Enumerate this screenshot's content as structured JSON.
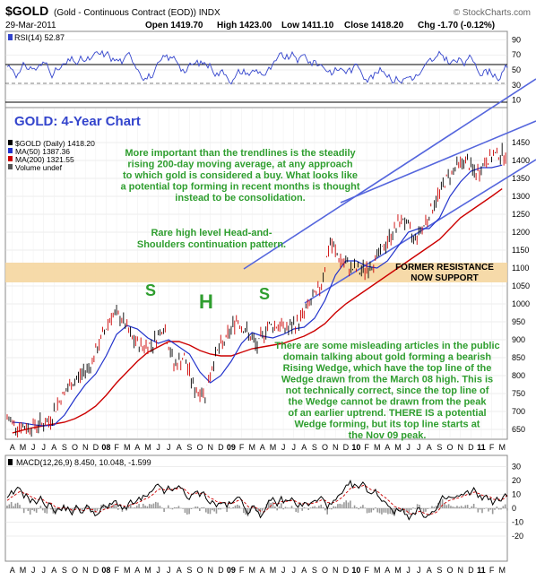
{
  "header": {
    "symbol": "$GOLD",
    "description": "(Gold - Continuous Contract (EOD)) INDX",
    "watermark": "© StockCharts.com",
    "date": "29-Mar-2011",
    "open": "Open 1419.70",
    "high": "High 1423.00",
    "low": "Low 1411.10",
    "close": "Close 1418.20",
    "change": "Chg -1.70 (-0.12%)"
  },
  "rsi_panel": {
    "label": "RSI(14) 52.87",
    "ticks": [
      "90",
      "70",
      "50",
      "30",
      "10"
    ]
  },
  "price_panel": {
    "chart_title": "GOLD: 4-Year Chart",
    "legend": [
      {
        "text": "$GOLD (Daily) 1418.20",
        "color": "#000000"
      },
      {
        "text": "MA(50) 1387.36",
        "color": "#2233cc"
      },
      {
        "text": "MA(200) 1321.55",
        "color": "#cc0000"
      },
      {
        "text": "Volume undef",
        "color": "#555555"
      }
    ],
    "yticks": [
      "1450",
      "1400",
      "1350",
      "1300",
      "1250",
      "1200",
      "1150",
      "1100",
      "1050",
      "1000",
      "950",
      "900",
      "850",
      "800",
      "750",
      "700",
      "650"
    ],
    "resistance_label_1": "FORMER RESISTANCE",
    "resistance_label_2": "NOW SUPPORT",
    "hs_letters": [
      "S",
      "H",
      "S"
    ],
    "annotation_top": [
      "More important than the trendlines is the steadily",
      "rising 200-day moving average, at any approach",
      "to which gold is considered a buy. What looks like",
      "a potential top forming in recent months is thought",
      "instead to be consolidation."
    ],
    "annotation_hs": [
      "Rare high level Head-and-",
      "Shoulders continuation pattern."
    ],
    "annotation_wedge": [
      "There are some misleading articles in the public",
      "domain talking about gold forming a bearish",
      "Rising Wedge, which have the top line of the",
      "Wedge drawn from the March 08 high. This is",
      "not technically correct, since the top line of",
      "the Wedge cannot be drawn from the peak",
      "of an earlier uptrend. THERE IS a potential",
      "Wedge forming, but its top line starts at",
      "the Nov 09 peak."
    ]
  },
  "xaxis": {
    "labels": [
      "A",
      "M",
      "J",
      "J",
      "A",
      "S",
      "O",
      "N",
      "D",
      "08",
      "F",
      "M",
      "A",
      "M",
      "J",
      "J",
      "A",
      "S",
      "O",
      "N",
      "D",
      "09",
      "F",
      "M",
      "A",
      "M",
      "J",
      "J",
      "A",
      "S",
      "O",
      "N",
      "D",
      "10",
      "F",
      "M",
      "A",
      "M",
      "J",
      "J",
      "A",
      "S",
      "O",
      "N",
      "D",
      "11",
      "F",
      "M"
    ]
  },
  "macd_panel": {
    "label": "MACD(12,26,9) 8.450, 10.048, -1.599",
    "ticks": [
      "30",
      "20",
      "10",
      "0",
      "-10",
      "-20"
    ]
  },
  "colors": {
    "price": "#000000",
    "ma50": "#2233cc",
    "ma200": "#cc0000",
    "rsi": "#3344cc",
    "annotation": "#2f9e2f",
    "title": "#3344cc",
    "band": "#f5d6a0",
    "trendline": "#5566dd"
  },
  "chart_data": {
    "type": "line",
    "title": "GOLD: 4-Year Chart",
    "x": [
      "2007-04",
      "2007-05",
      "2007-06",
      "2007-07",
      "2007-08",
      "2007-09",
      "2007-10",
      "2007-11",
      "2007-12",
      "2008-01",
      "2008-02",
      "2008-03",
      "2008-04",
      "2008-05",
      "2008-06",
      "2008-07",
      "2008-08",
      "2008-09",
      "2008-10",
      "2008-11",
      "2008-12",
      "2009-01",
      "2009-02",
      "2009-03",
      "2009-04",
      "2009-05",
      "2009-06",
      "2009-07",
      "2009-08",
      "2009-09",
      "2009-10",
      "2009-11",
      "2009-12",
      "2010-01",
      "2010-02",
      "2010-03",
      "2010-04",
      "2010-05",
      "2010-06",
      "2010-07",
      "2010-08",
      "2010-09",
      "2010-10",
      "2010-11",
      "2010-12",
      "2011-01",
      "2011-02",
      "2011-03"
    ],
    "series": [
      {
        "name": "$GOLD (Daily)",
        "values": [
          680,
          660,
          655,
          665,
          670,
          730,
          770,
          800,
          830,
          900,
          970,
          960,
          900,
          880,
          890,
          940,
          830,
          850,
          760,
          750,
          860,
          900,
          960,
          920,
          880,
          940,
          940,
          930,
          950,
          1000,
          1040,
          1170,
          1120,
          1100,
          1090,
          1110,
          1150,
          1200,
          1240,
          1180,
          1220,
          1280,
          1340,
          1380,
          1400,
          1360,
          1400,
          1418
        ]
      },
      {
        "name": "MA(50)",
        "values": [
          670,
          668,
          663,
          660,
          662,
          690,
          735,
          775,
          805,
          855,
          915,
          940,
          930,
          905,
          890,
          900,
          880,
          860,
          810,
          780,
          800,
          840,
          890,
          920,
          910,
          905,
          915,
          930,
          935,
          960,
          1010,
          1080,
          1120,
          1120,
          1105,
          1100,
          1120,
          1160,
          1200,
          1210,
          1210,
          1240,
          1300,
          1340,
          1370,
          1380,
          1380,
          1387
        ]
      },
      {
        "name": "MA(200)",
        "values": [
          640,
          648,
          655,
          660,
          665,
          670,
          680,
          695,
          715,
          745,
          780,
          810,
          840,
          865,
          880,
          895,
          895,
          885,
          870,
          860,
          855,
          855,
          865,
          875,
          880,
          885,
          890,
          900,
          910,
          925,
          945,
          975,
          1000,
          1020,
          1040,
          1060,
          1080,
          1100,
          1120,
          1140,
          1160,
          1180,
          1210,
          1240,
          1260,
          1280,
          1300,
          1321
        ]
      }
    ],
    "rsi": {
      "name": "RSI(14)",
      "last": 52.87,
      "ylim": [
        0,
        100
      ]
    },
    "macd": {
      "name": "MACD(12,26,9)",
      "macd": 8.45,
      "signal": 10.048,
      "histogram": -1.599
    },
    "ylim": [
      620,
      1480
    ],
    "grid": true
  }
}
